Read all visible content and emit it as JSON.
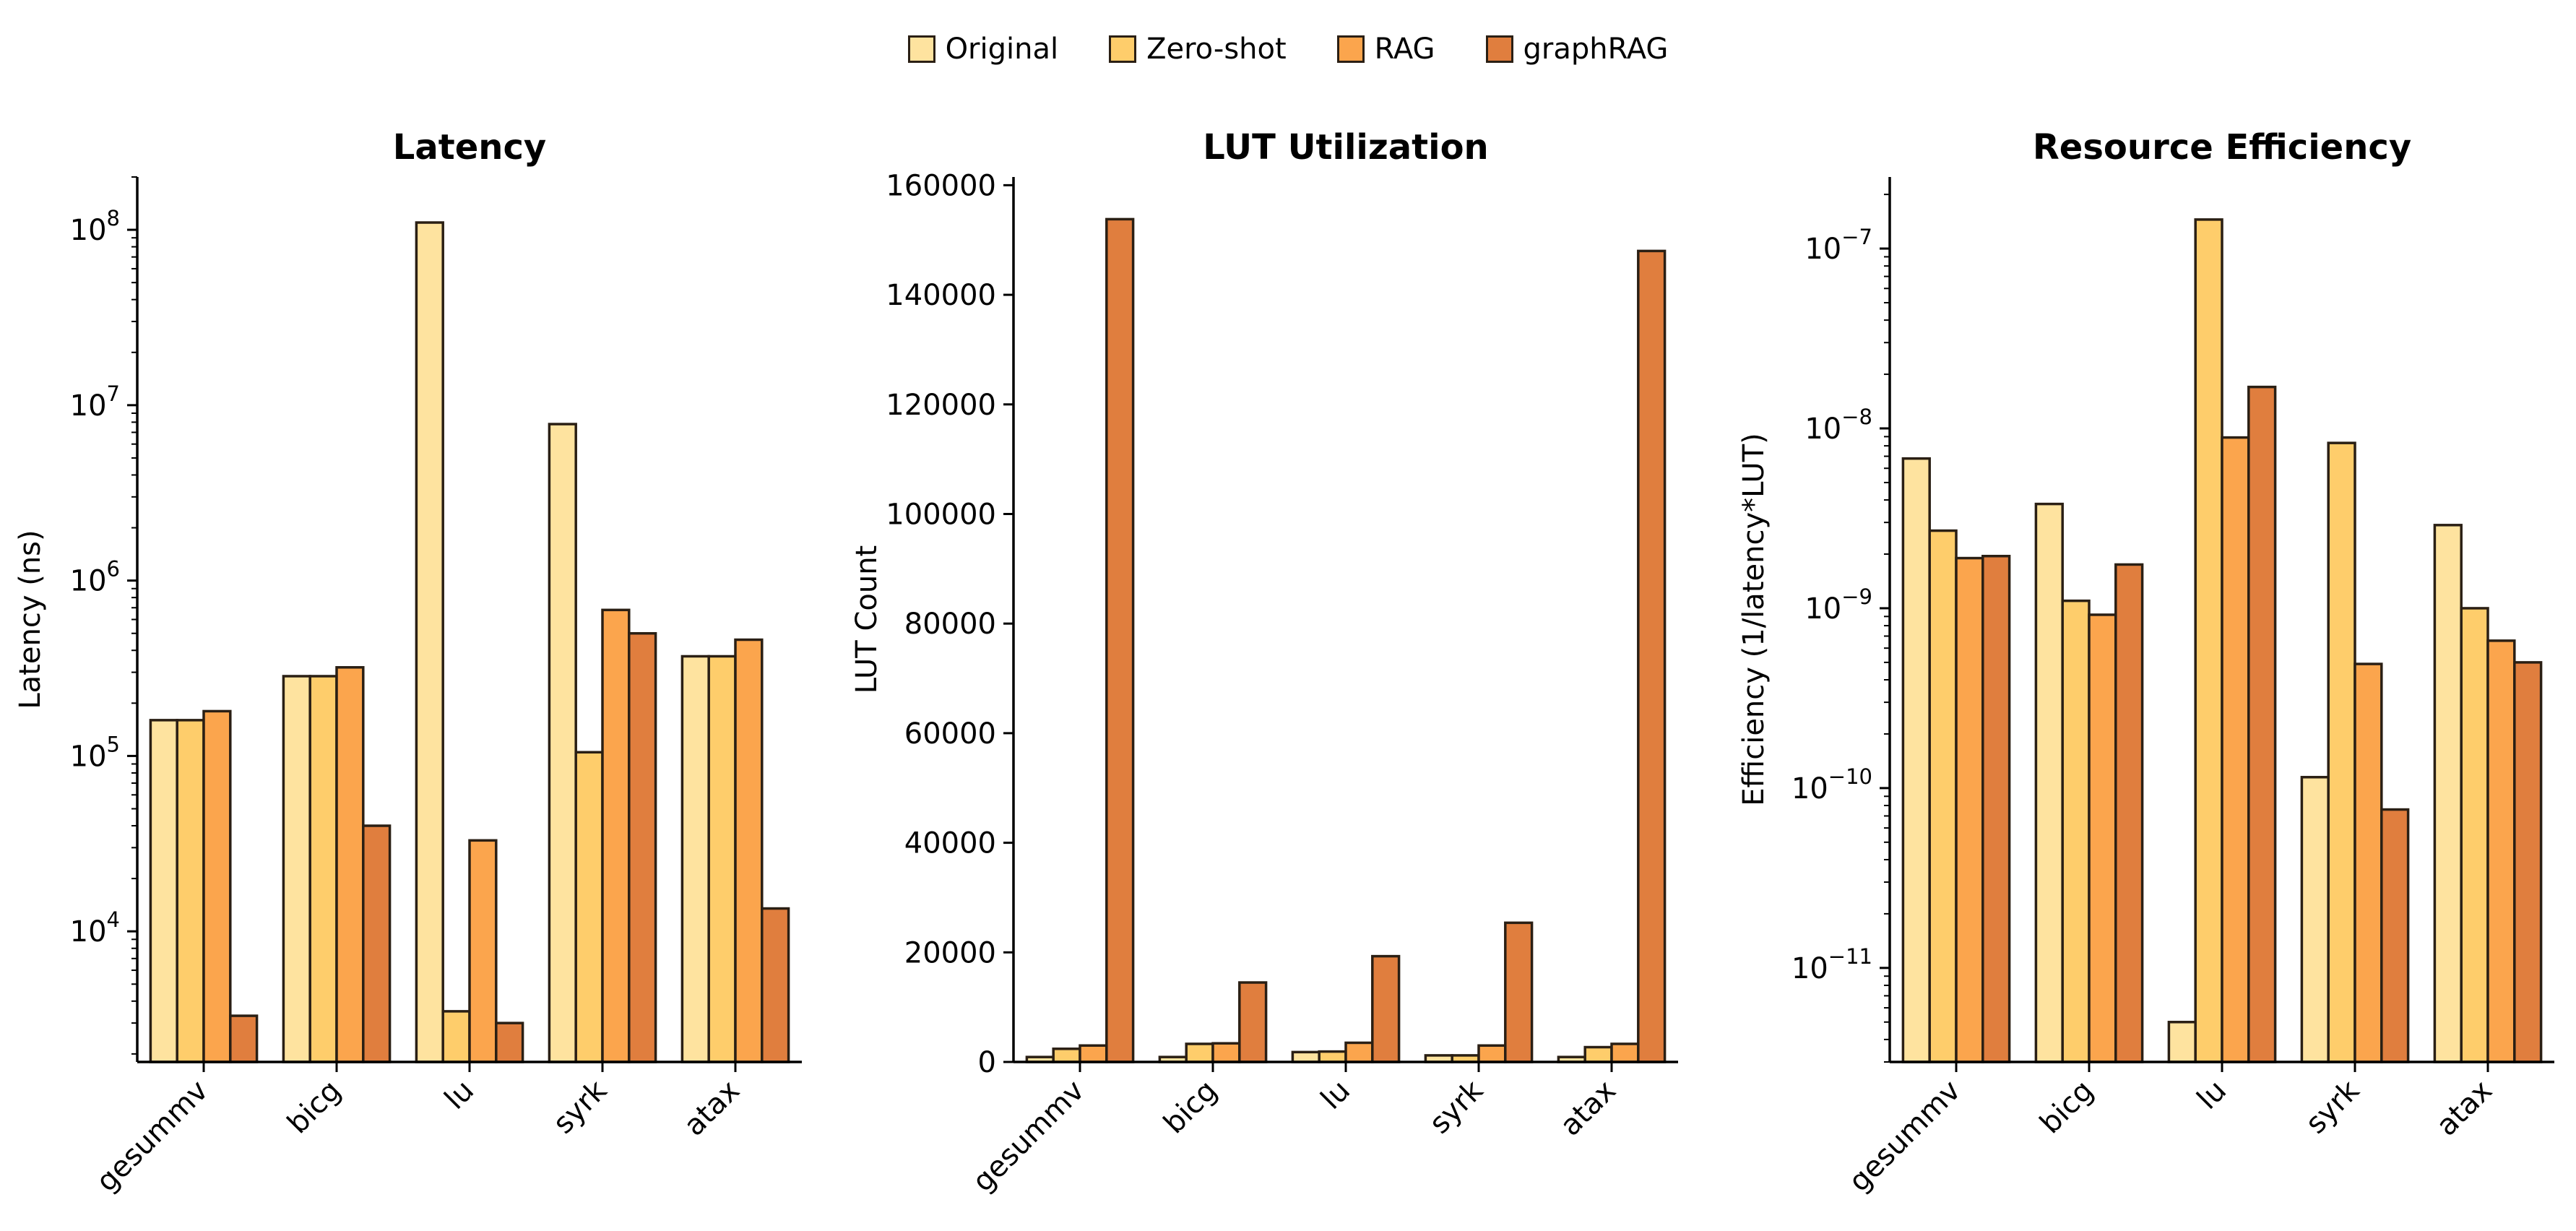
{
  "legend": {
    "items": [
      {
        "label": "Original",
        "color": "#FEE39F"
      },
      {
        "label": "Zero-shot",
        "color": "#FECD6B"
      },
      {
        "label": "RAG",
        "color": "#FBA54D"
      },
      {
        "label": "graphRAG",
        "color": "#E07E3E"
      }
    ]
  },
  "chart_data": [
    {
      "type": "bar",
      "title": "Latency",
      "ylabel": "Latency (ns)",
      "yscale": "log",
      "ylim": [
        1800,
        200000000
      ],
      "yticks": [
        {
          "value": 10000,
          "label": "10",
          "exp": "4"
        },
        {
          "value": 100000,
          "label": "10",
          "exp": "5"
        },
        {
          "value": 1000000,
          "label": "10",
          "exp": "6"
        },
        {
          "value": 10000000,
          "label": "10",
          "exp": "7"
        },
        {
          "value": 100000000,
          "label": "10",
          "exp": "8"
        }
      ],
      "categories": [
        "gesummv",
        "bicg",
        "lu",
        "syrk",
        "atax"
      ],
      "series": [
        {
          "name": "Original",
          "values": [
            160000,
            285000,
            110000000,
            7800000,
            370000
          ]
        },
        {
          "name": "Zero-shot",
          "values": [
            160000,
            285000,
            3500,
            105000,
            370000
          ]
        },
        {
          "name": "RAG",
          "values": [
            180000,
            320000,
            33000,
            680000,
            460000
          ]
        },
        {
          "name": "graphRAG",
          "values": [
            3300,
            40000,
            3000,
            500000,
            13500
          ]
        }
      ]
    },
    {
      "type": "bar",
      "title": "LUT Utilization",
      "ylabel": "LUT Count",
      "yscale": "linear",
      "ylim": [
        0,
        161500
      ],
      "yticks": [
        {
          "value": 0,
          "label": "0"
        },
        {
          "value": 20000,
          "label": "20000"
        },
        {
          "value": 40000,
          "label": "40000"
        },
        {
          "value": 60000,
          "label": "60000"
        },
        {
          "value": 80000,
          "label": "80000"
        },
        {
          "value": 100000,
          "label": "100000"
        },
        {
          "value": 120000,
          "label": "120000"
        },
        {
          "value": 140000,
          "label": "140000"
        },
        {
          "value": 160000,
          "label": "160000"
        }
      ],
      "categories": [
        "gesummv",
        "bicg",
        "lu",
        "syrk",
        "atax"
      ],
      "series": [
        {
          "name": "Original",
          "values": [
            900,
            900,
            1800,
            1200,
            900
          ]
        },
        {
          "name": "Zero-shot",
          "values": [
            2400,
            3300,
            1900,
            1200,
            2700
          ]
        },
        {
          "name": "RAG",
          "values": [
            3000,
            3400,
            3500,
            3000,
            3300
          ]
        },
        {
          "name": "graphRAG",
          "values": [
            153800,
            14500,
            19300,
            25400,
            148000
          ]
        }
      ]
    },
    {
      "type": "bar",
      "title": "Resource Efficiency",
      "ylabel": "Efficiency (1/latency*LUT)",
      "yscale": "log",
      "ylim": [
        3e-12,
        2.5e-07
      ],
      "yticks": [
        {
          "value": 1e-11,
          "label": "10",
          "exp": "−11"
        },
        {
          "value": 1e-10,
          "label": "10",
          "exp": "−10"
        },
        {
          "value": 1e-09,
          "label": "10",
          "exp": "−9"
        },
        {
          "value": 1e-08,
          "label": "10",
          "exp": "−8"
        },
        {
          "value": 1e-07,
          "label": "10",
          "exp": "−7"
        }
      ],
      "categories": [
        "gesummv",
        "bicg",
        "lu",
        "syrk",
        "atax"
      ],
      "series": [
        {
          "name": "Original",
          "values": [
            6.8e-09,
            3.8e-09,
            5e-12,
            1.15e-10,
            2.9e-09
          ]
        },
        {
          "name": "Zero-shot",
          "values": [
            2.7e-09,
            1.1e-09,
            1.45e-07,
            8.3e-09,
            1e-09
          ]
        },
        {
          "name": "RAG",
          "values": [
            1.9e-09,
            9.2e-10,
            8.9e-09,
            4.9e-10,
            6.6e-10
          ]
        },
        {
          "name": "graphRAG",
          "values": [
            1.95e-09,
            1.75e-09,
            1.7e-08,
            7.6e-11,
            5e-10
          ]
        }
      ]
    }
  ]
}
